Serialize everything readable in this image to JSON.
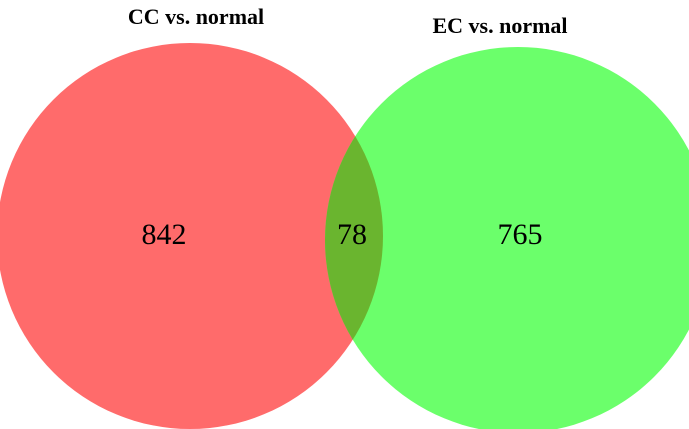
{
  "sets": [
    {
      "label": "CC vs. normal",
      "color": "#ff6b6b"
    },
    {
      "label": "EC vs. normal",
      "color": "#6bff6b"
    }
  ],
  "overlap_color": "#6ab52f",
  "counts": {
    "cc_only": "842",
    "overlap": "78",
    "ec_only": "765"
  }
}
